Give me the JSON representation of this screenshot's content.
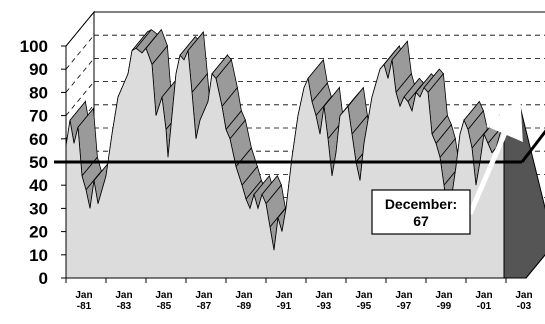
{
  "chart_data": {
    "type": "area",
    "title": "",
    "xlabel": "",
    "ylabel": "",
    "ylim": [
      0,
      100
    ],
    "yticks": [
      0,
      10,
      20,
      30,
      40,
      50,
      60,
      70,
      80,
      90,
      100
    ],
    "xticks": [
      {
        "line1": "Jan",
        "line2": "-81",
        "x": 1981
      },
      {
        "line1": "Jan",
        "line2": "-83",
        "x": 1983
      },
      {
        "line1": "Jan",
        "line2": "-85",
        "x": 1985
      },
      {
        "line1": "Jan",
        "line2": "-87",
        "x": 1987
      },
      {
        "line1": "Jan",
        "line2": "-89",
        "x": 1989
      },
      {
        "line1": "Jan",
        "line2": "-91",
        "x": 1991
      },
      {
        "line1": "Jan",
        "line2": "-93",
        "x": 1993
      },
      {
        "line1": "Jan",
        "line2": "-95",
        "x": 1995
      },
      {
        "line1": "Jan",
        "line2": "-97",
        "x": 1997
      },
      {
        "line1": "Jan",
        "line2": "-99",
        "x": 1999
      },
      {
        "line1": "Jan",
        "line2": "-01",
        "x": 2001
      },
      {
        "line1": "Jan",
        "line2": "-03",
        "x": 2003
      }
    ],
    "xlim": [
      1981,
      2004
    ],
    "grid": true,
    "reference_line": 50,
    "series": [
      {
        "values": [
          [
            1981.0,
            57
          ],
          [
            1981.2,
            68
          ],
          [
            1981.4,
            58
          ],
          [
            1981.6,
            65
          ],
          [
            1981.8,
            44
          ],
          [
            1982.0,
            38
          ],
          [
            1982.2,
            30
          ],
          [
            1982.4,
            42
          ],
          [
            1982.6,
            32
          ],
          [
            1982.8,
            38
          ],
          [
            1983.0,
            44
          ],
          [
            1983.3,
            62
          ],
          [
            1983.6,
            78
          ],
          [
            1983.9,
            84
          ],
          [
            1984.1,
            88
          ],
          [
            1984.3,
            98
          ],
          [
            1984.5,
            99
          ],
          [
            1984.8,
            97
          ],
          [
            1985.0,
            99
          ],
          [
            1985.3,
            92
          ],
          [
            1985.5,
            70
          ],
          [
            1985.8,
            78
          ],
          [
            1986.0,
            64
          ],
          [
            1986.1,
            52
          ],
          [
            1986.3,
            70
          ],
          [
            1986.5,
            88
          ],
          [
            1986.7,
            96
          ],
          [
            1986.9,
            94
          ],
          [
            1987.1,
            98
          ],
          [
            1987.3,
            80
          ],
          [
            1987.5,
            60
          ],
          [
            1987.7,
            68
          ],
          [
            1987.9,
            72
          ],
          [
            1988.1,
            76
          ],
          [
            1988.3,
            88
          ],
          [
            1988.5,
            86
          ],
          [
            1988.8,
            74
          ],
          [
            1989.0,
            64
          ],
          [
            1989.2,
            60
          ],
          [
            1989.5,
            48
          ],
          [
            1989.8,
            40
          ],
          [
            1990.0,
            34
          ],
          [
            1990.2,
            30
          ],
          [
            1990.4,
            36
          ],
          [
            1990.6,
            30
          ],
          [
            1990.8,
            36
          ],
          [
            1991.0,
            32
          ],
          [
            1991.2,
            22
          ],
          [
            1991.4,
            12
          ],
          [
            1991.6,
            26
          ],
          [
            1991.8,
            20
          ],
          [
            1992.0,
            30
          ],
          [
            1992.3,
            52
          ],
          [
            1992.6,
            70
          ],
          [
            1992.9,
            82
          ],
          [
            1993.1,
            86
          ],
          [
            1993.3,
            76
          ],
          [
            1993.5,
            70
          ],
          [
            1993.7,
            62
          ],
          [
            1993.9,
            74
          ],
          [
            1994.1,
            60
          ],
          [
            1994.3,
            44
          ],
          [
            1994.5,
            54
          ],
          [
            1994.7,
            70
          ],
          [
            1994.9,
            72
          ],
          [
            1995.1,
            74
          ],
          [
            1995.3,
            62
          ],
          [
            1995.5,
            50
          ],
          [
            1995.7,
            42
          ],
          [
            1995.9,
            58
          ],
          [
            1996.1,
            68
          ],
          [
            1996.3,
            78
          ],
          [
            1996.5,
            84
          ],
          [
            1996.7,
            90
          ],
          [
            1996.9,
            92
          ],
          [
            1997.1,
            86
          ],
          [
            1997.3,
            94
          ],
          [
            1997.5,
            80
          ],
          [
            1997.7,
            74
          ],
          [
            1997.9,
            78
          ],
          [
            1998.1,
            76
          ],
          [
            1998.3,
            72
          ],
          [
            1998.5,
            80
          ],
          [
            1998.7,
            78
          ],
          [
            1998.9,
            82
          ],
          [
            1999.1,
            80
          ],
          [
            1999.3,
            62
          ],
          [
            1999.5,
            58
          ],
          [
            1999.7,
            52
          ],
          [
            1999.9,
            40
          ],
          [
            2000.1,
            24
          ],
          [
            2000.3,
            36
          ],
          [
            2000.5,
            48
          ],
          [
            2000.7,
            62
          ],
          [
            2000.9,
            68
          ],
          [
            2001.1,
            64
          ],
          [
            2001.3,
            56
          ],
          [
            2001.5,
            40
          ],
          [
            2001.7,
            50
          ],
          [
            2001.9,
            62
          ],
          [
            2002.1,
            58
          ],
          [
            2002.3,
            54
          ],
          [
            2002.5,
            56
          ],
          [
            2002.7,
            62
          ],
          [
            2002.9,
            67
          ]
        ]
      }
    ],
    "annotation": {
      "line1": "December:",
      "line2": "67",
      "x": 2002.9,
      "y": 67
    }
  }
}
